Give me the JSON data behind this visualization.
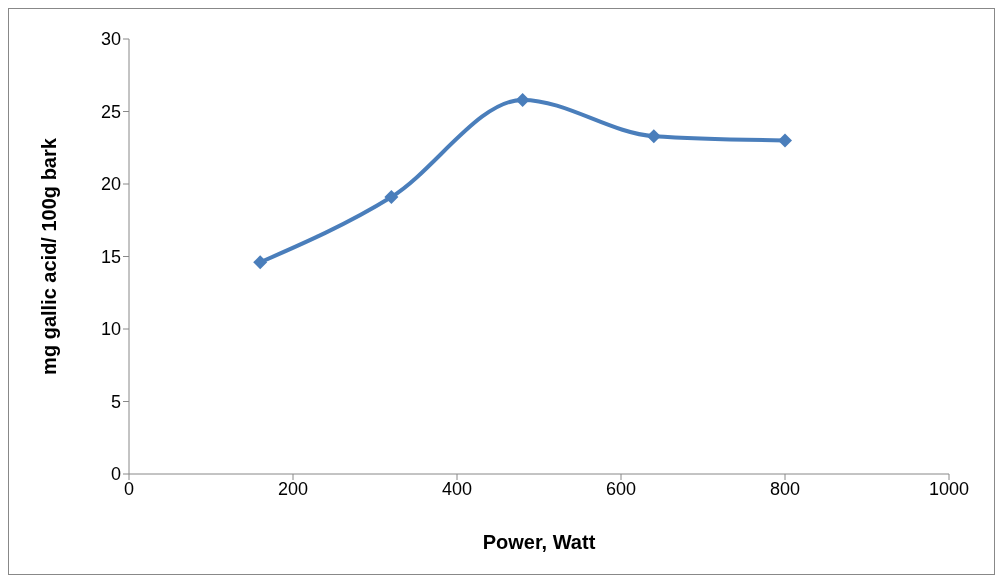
{
  "chart_data": {
    "type": "line",
    "xlabel": "Power, Watt",
    "ylabel": "mg gallic acid/ 100g bark",
    "x": [
      160,
      320,
      480,
      640,
      800
    ],
    "series": [
      {
        "color": "#4a7ebb",
        "values": [
          14.6,
          19.1,
          25.8,
          23.3,
          23.0
        ]
      }
    ],
    "xlim": [
      0,
      1000
    ],
    "xticks": [
      0,
      200,
      400,
      600,
      800,
      1000
    ],
    "ylim": [
      0,
      30
    ],
    "yticks": [
      0,
      5,
      10,
      15,
      20,
      25,
      30
    ],
    "grid": false,
    "legend": false,
    "marker": "diamond",
    "line_style": "solid"
  }
}
